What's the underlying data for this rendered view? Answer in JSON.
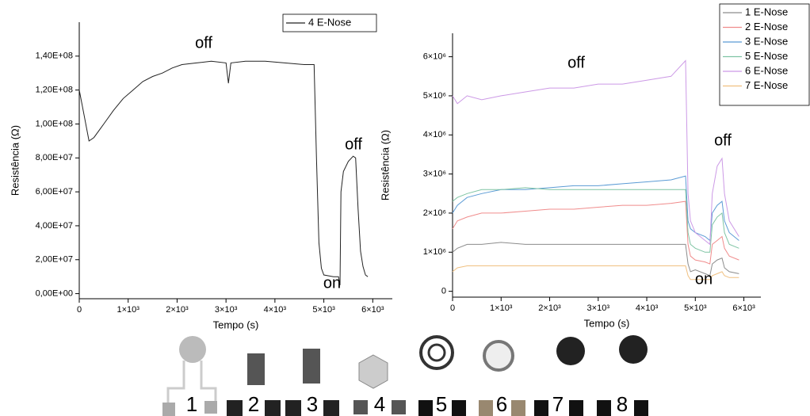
{
  "chart_data": [
    {
      "type": "line",
      "x_label": "Tempo (s)",
      "y_label": "Resistência (Ω)",
      "annotations": [
        "off",
        "off",
        "on"
      ],
      "xlim": [
        0,
        6400
      ],
      "ylim": [
        -3000000,
        160000000
      ],
      "xticks": [
        0,
        {
          "value": 1000,
          "label": "1×10³"
        },
        {
          "value": 2000,
          "label": "2×10³"
        },
        {
          "value": 3000,
          "label": "3×10³"
        },
        {
          "value": 4000,
          "label": "4×10³"
        },
        {
          "value": 5000,
          "label": "5×10³"
        },
        {
          "value": 6000,
          "label": "6×10³"
        }
      ],
      "yticks": [
        {
          "value": 0,
          "label": "0,00E+00"
        },
        {
          "value": 20000000,
          "label": "2,00E+07"
        },
        {
          "value": 40000000,
          "label": "4,00E+07"
        },
        {
          "value": 60000000,
          "label": "6,00E+07"
        },
        {
          "value": 80000000,
          "label": "8,00E+07"
        },
        {
          "value": 100000000,
          "label": "1,00E+08"
        },
        {
          "value": 120000000,
          "label": "1,20E+08"
        },
        {
          "value": 140000000,
          "label": "1,40E+08"
        }
      ],
      "x": [
        0,
        100,
        200,
        300,
        500,
        700,
        900,
        1100,
        1300,
        1500,
        1700,
        1900,
        2100,
        2400,
        2700,
        3000,
        3050,
        3100,
        3400,
        3800,
        4200,
        4600,
        4800,
        4850,
        4900,
        4950,
        5000,
        5200,
        5300,
        5330,
        5350,
        5400,
        5500,
        5600,
        5650,
        5700,
        5750,
        5800,
        5850,
        5900
      ],
      "series": [
        {
          "name": "4 E-Nose",
          "color": "#222222",
          "values": [
            120000000,
            105000000,
            90000000,
            92000000,
            100000000,
            108000000,
            115000000,
            120000000,
            125000000,
            128000000,
            130000000,
            133000000,
            135000000,
            136000000,
            137000000,
            136000000,
            124000000,
            136000000,
            137000000,
            137000000,
            136000000,
            135000000,
            135000000,
            80000000,
            30000000,
            15000000,
            11000000,
            10000000,
            10000000,
            5000000,
            60000000,
            72000000,
            78000000,
            81000000,
            80000000,
            50000000,
            25000000,
            16000000,
            11000000,
            10000000
          ]
        }
      ]
    },
    {
      "type": "line",
      "x_label": "Tempo (s)",
      "y_label": "Resistência (Ω)",
      "annotations": [
        "off",
        "off",
        "on"
      ],
      "xlim": [
        0,
        6350
      ],
      "ylim": [
        -150000,
        6600000
      ],
      "xticks": [
        0,
        {
          "value": 1000,
          "label": "1×10³"
        },
        {
          "value": 2000,
          "label": "2×10³"
        },
        {
          "value": 3000,
          "label": "3×10³"
        },
        {
          "value": 4000,
          "label": "4×10³"
        },
        {
          "value": 5000,
          "label": "5×10³"
        },
        {
          "value": 6000,
          "label": "6×10³"
        }
      ],
      "yticks": [
        0,
        {
          "value": 1000000,
          "label": "1×10⁶"
        },
        {
          "value": 2000000,
          "label": "2×10⁶"
        },
        {
          "value": 3000000,
          "label": "3×10⁶"
        },
        {
          "value": 4000000,
          "label": "4×10⁶"
        },
        {
          "value": 5000000,
          "label": "5×10⁶"
        },
        {
          "value": 6000000,
          "label": "6×10⁶"
        }
      ],
      "x": [
        0,
        100,
        300,
        600,
        1000,
        1500,
        2000,
        2500,
        3000,
        3500,
        4000,
        4500,
        4800,
        4850,
        4900,
        5000,
        5200,
        5300,
        5350,
        5450,
        5550,
        5600,
        5700,
        5900
      ],
      "series": [
        {
          "name": "1 E-Nose",
          "color": "#8c8c8c",
          "values": [
            1000000,
            1100000,
            1200000,
            1200000,
            1250000,
            1200000,
            1200000,
            1200000,
            1200000,
            1200000,
            1200000,
            1200000,
            1200000,
            700000,
            500000,
            550000,
            450000,
            400000,
            700000,
            800000,
            850000,
            600000,
            500000,
            450000
          ]
        },
        {
          "name": "2 E-Nose",
          "color": "#f08c8c",
          "values": [
            1600000,
            1800000,
            1900000,
            2000000,
            2000000,
            2050000,
            2100000,
            2100000,
            2150000,
            2200000,
            2200000,
            2250000,
            2300000,
            1200000,
            900000,
            800000,
            750000,
            700000,
            1200000,
            1300000,
            1400000,
            1100000,
            900000,
            800000
          ]
        },
        {
          "name": "3 E-Nose",
          "color": "#5b9bd5",
          "values": [
            2000000,
            2200000,
            2400000,
            2500000,
            2600000,
            2600000,
            2650000,
            2700000,
            2700000,
            2750000,
            2800000,
            2850000,
            2950000,
            1800000,
            1600000,
            1500000,
            1400000,
            1300000,
            2000000,
            2200000,
            2300000,
            1800000,
            1500000,
            1300000
          ]
        },
        {
          "name": "5 E-Nose",
          "color": "#7fc4a4",
          "values": [
            2300000,
            2400000,
            2500000,
            2600000,
            2600000,
            2650000,
            2600000,
            2600000,
            2600000,
            2600000,
            2600000,
            2600000,
            2600000,
            1500000,
            1200000,
            1100000,
            1000000,
            1000000,
            1700000,
            1900000,
            2000000,
            1500000,
            1200000,
            1100000
          ]
        },
        {
          "name": "6 E-Nose",
          "color": "#cc99e6",
          "values": [
            5000000,
            4800000,
            5000000,
            4900000,
            5000000,
            5100000,
            5200000,
            5200000,
            5300000,
            5300000,
            5400000,
            5500000,
            5900000,
            2500000,
            1800000,
            1500000,
            1300000,
            1200000,
            2500000,
            3200000,
            3400000,
            2500000,
            1800000,
            1400000
          ]
        },
        {
          "name": "7 E-Nose",
          "color": "#f0c080",
          "values": [
            500000,
            600000,
            650000,
            650000,
            650000,
            650000,
            650000,
            650000,
            650000,
            650000,
            650000,
            650000,
            650000,
            400000,
            300000,
            300000,
            300000,
            300000,
            400000,
            450000,
            500000,
            400000,
            350000,
            350000
          ]
        }
      ]
    }
  ],
  "sensors": {
    "labels": [
      "1",
      "2",
      "3",
      "4",
      "5",
      "6",
      "7",
      "8"
    ]
  }
}
